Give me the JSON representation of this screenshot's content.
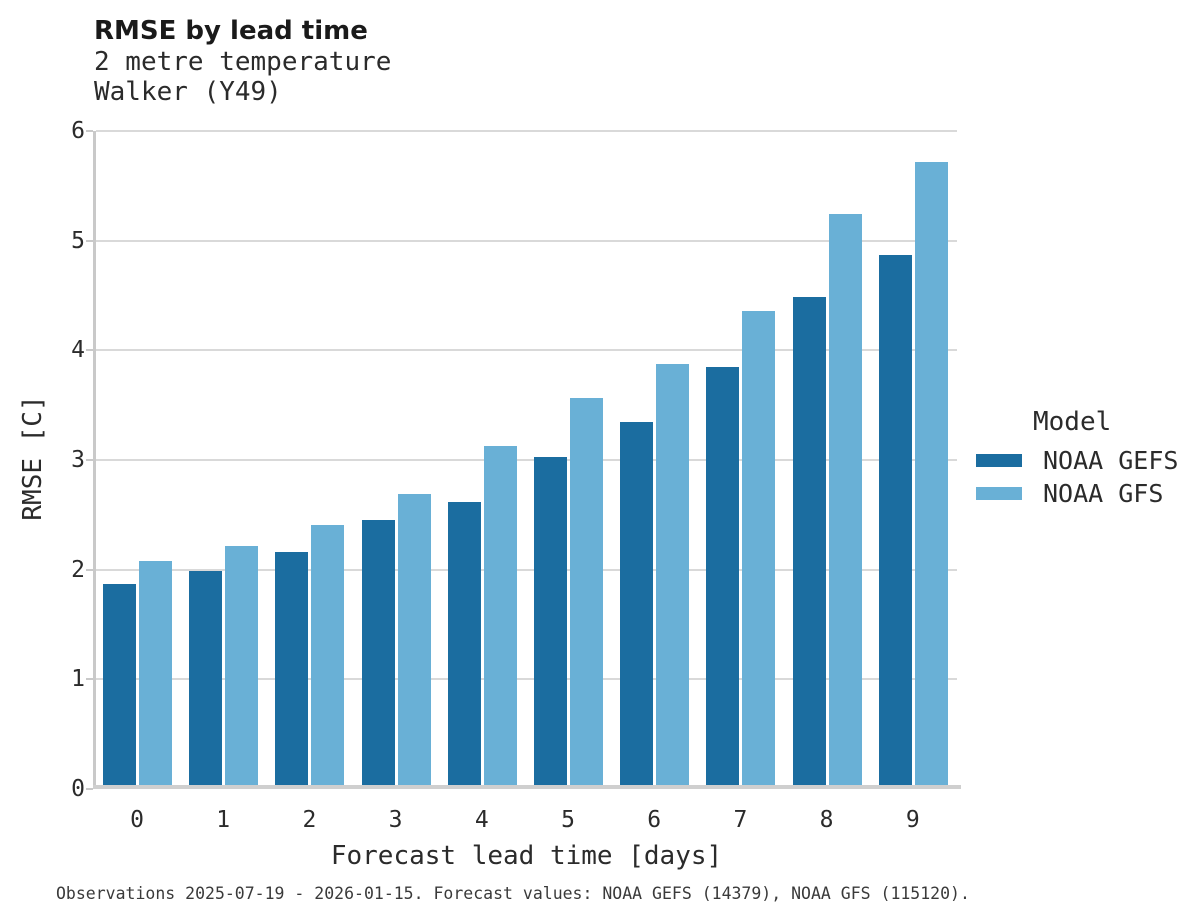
{
  "chart_data": {
    "type": "bar",
    "title": "RMSE by lead time",
    "subtitle": [
      "2 metre temperature",
      "Walker (Y49)"
    ],
    "xlabel": "Forecast lead time [days]",
    "ylabel": "RMSE [C]",
    "categories": [
      "0",
      "1",
      "2",
      "3",
      "4",
      "5",
      "6",
      "7",
      "8",
      "9"
    ],
    "series": [
      {
        "name": "NOAA GEFS",
        "color": "#1b6da0",
        "values": [
          1.87,
          1.99,
          2.16,
          2.45,
          2.62,
          3.03,
          3.35,
          3.85,
          4.49,
          4.87
        ]
      },
      {
        "name": "NOAA GFS",
        "color": "#69b0d6",
        "values": [
          2.08,
          2.22,
          2.41,
          2.69,
          3.13,
          3.57,
          3.88,
          4.36,
          5.24,
          5.72
        ]
      }
    ],
    "ylim": [
      0,
      6
    ],
    "yticks": [
      0,
      1,
      2,
      3,
      4,
      5,
      6
    ],
    "legend_title": "Model",
    "legend_position": "right",
    "grid": "horizontal",
    "caption": "Observations 2025-07-19 - 2026-01-15. Forecast values: NOAA GEFS (14379), NOAA GFS (115120)."
  },
  "colors": {
    "gridline": "#d9d9d9",
    "axis_line": "#c9c9c9",
    "baseline": "#cfcfcf"
  }
}
